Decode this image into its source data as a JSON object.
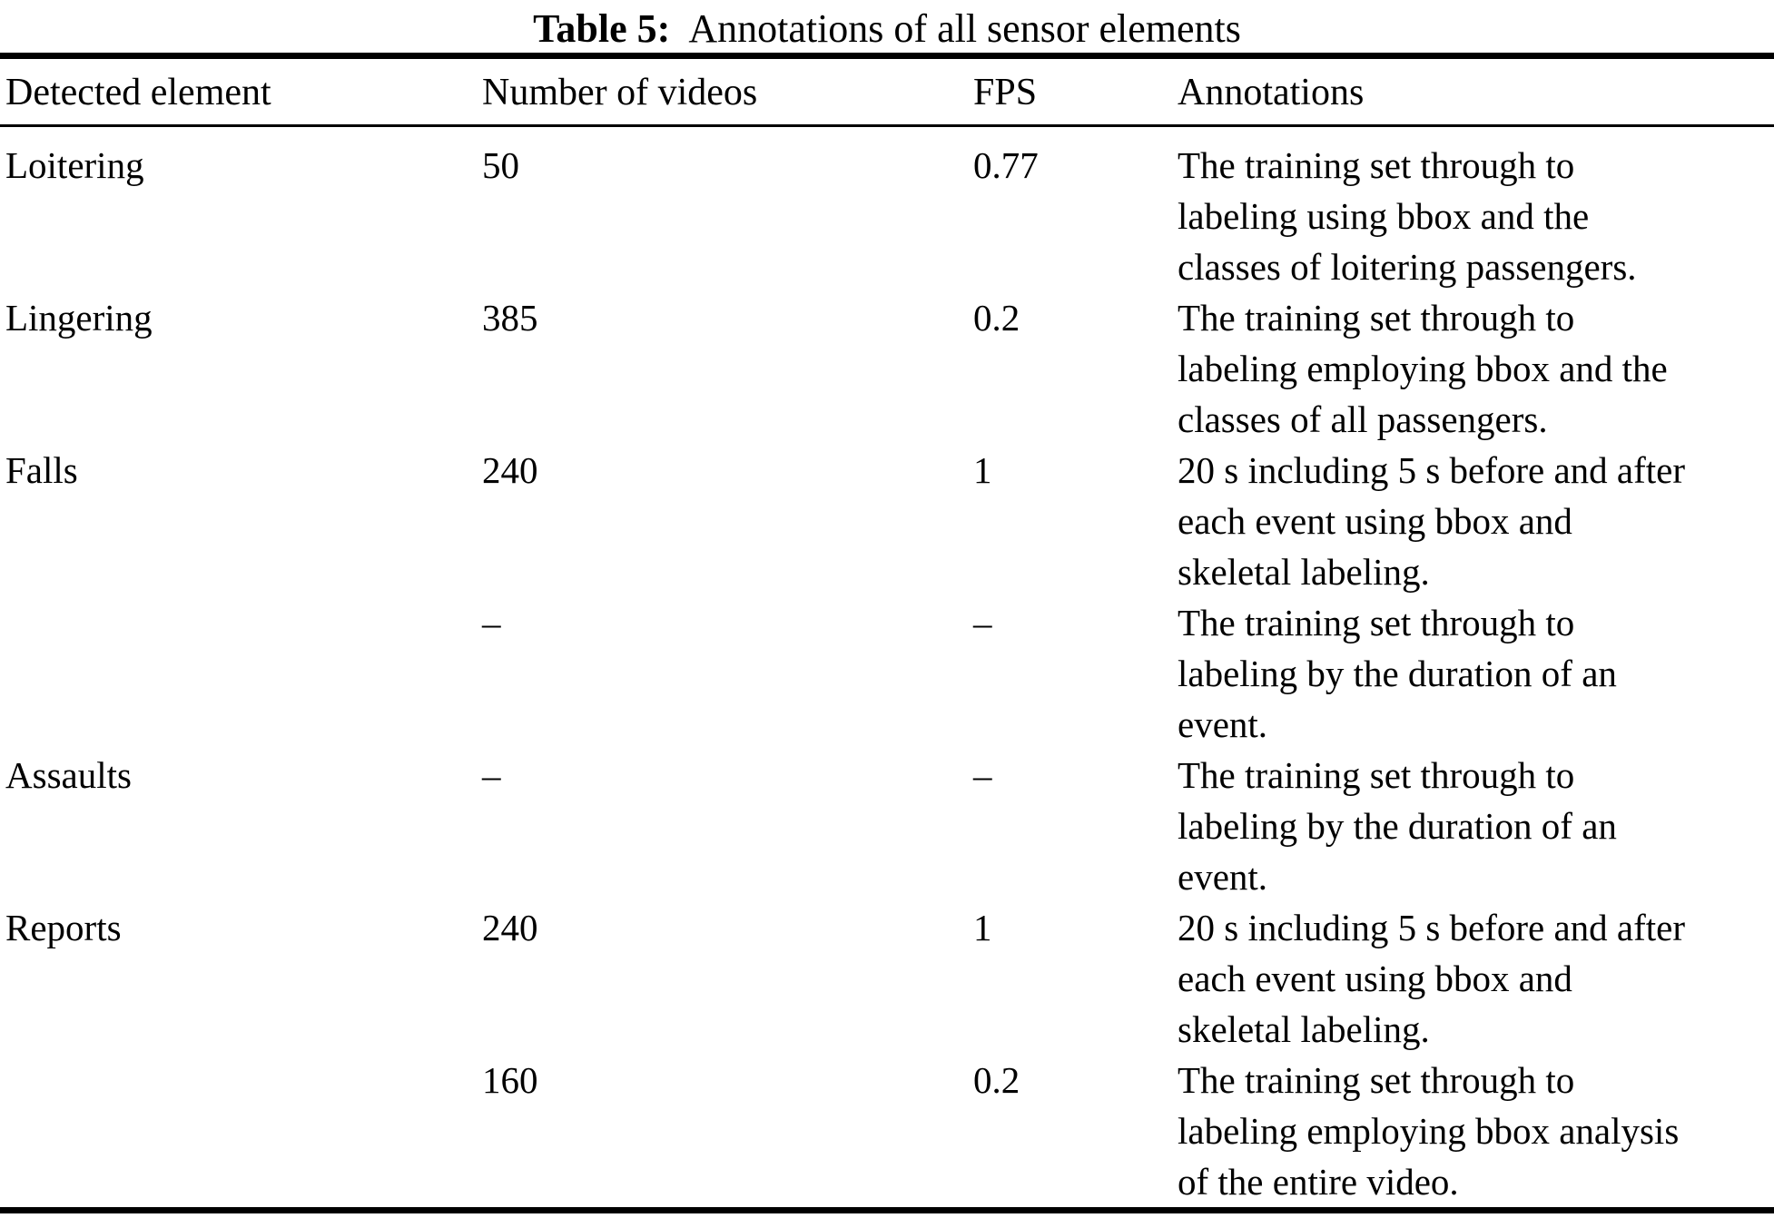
{
  "caption": {
    "label": "Table 5:",
    "text": "Annotations of all sensor elements"
  },
  "colors": {
    "text": "#000000",
    "background": "#ffffff",
    "rule": "#000000"
  },
  "table": {
    "headers": [
      "Detected element",
      "Number of videos",
      "FPS",
      "Annotations"
    ],
    "rows": [
      {
        "element": "Loitering",
        "videos": "50",
        "fps": "0.77",
        "annotation": "The training set through to\nlabeling using bbox and the\nclasses of loitering passengers."
      },
      {
        "element": "Lingering",
        "videos": "385",
        "fps": "0.2",
        "annotation": "The training set through to\nlabeling employing bbox and the\nclasses of all passengers."
      },
      {
        "element": "Falls",
        "videos": "240",
        "fps": "1",
        "annotation": "20 s including 5 s before and after\neach event using bbox and\nskeletal labeling."
      },
      {
        "element": "",
        "videos": "–",
        "fps": "–",
        "annotation": "The training set through to\nlabeling by the duration of an\nevent."
      },
      {
        "element": "Assaults",
        "videos": "–",
        "fps": "–",
        "annotation": "The training set through to\nlabeling by the duration of an\nevent."
      },
      {
        "element": "Reports",
        "videos": "240",
        "fps": "1",
        "annotation": "20 s including 5 s before and after\neach event using bbox and\nskeletal labeling."
      },
      {
        "element": "",
        "videos": "160",
        "fps": "0.2",
        "annotation": "The training set through to\nlabeling employing bbox analysis\nof the entire video."
      }
    ]
  }
}
